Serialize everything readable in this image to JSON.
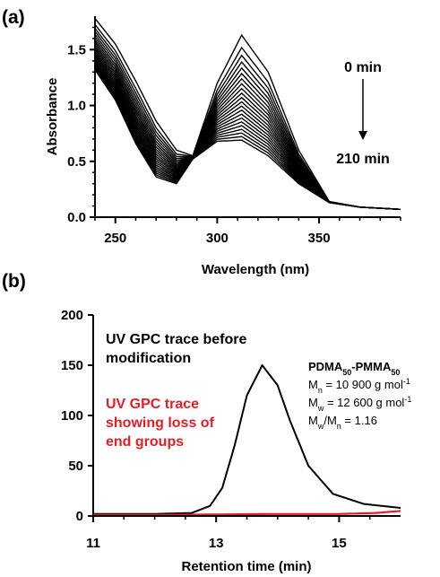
{
  "chart_data": [
    {
      "panel": "(a)",
      "type": "line",
      "xlabel": "Wavelength (nm)",
      "ylabel": "Absorbance",
      "xlim": [
        240,
        390
      ],
      "ylim": [
        0,
        1.8
      ],
      "xticks": [
        250,
        300,
        350
      ],
      "yticks": [
        0.0,
        0.5,
        1.0,
        1.5
      ],
      "ytick_labels": [
        "0.0",
        "0.5",
        "1.0",
        "1.5"
      ],
      "annotations": {
        "start": "0 min",
        "end": "210 min"
      },
      "n_curves": 22,
      "x": [
        240,
        250,
        260,
        270,
        280,
        288,
        300,
        312,
        325,
        340,
        355,
        370,
        390
      ],
      "series_first": [
        1.78,
        1.55,
        1.22,
        0.86,
        0.6,
        0.55,
        1.2,
        1.63,
        1.3,
        0.6,
        0.14,
        0.09,
        0.07
      ],
      "series_last": [
        1.32,
        1.05,
        0.66,
        0.36,
        0.3,
        0.52,
        0.68,
        0.69,
        0.55,
        0.3,
        0.13,
        0.09,
        0.07
      ],
      "color": "#000000"
    },
    {
      "panel": "(b)",
      "type": "line",
      "xlabel": "Retention time (min)",
      "ylabel": "",
      "xlim": [
        11,
        16
      ],
      "ylim": [
        0,
        200
      ],
      "xticks": [
        11,
        13,
        15
      ],
      "yticks": [
        0,
        50,
        100,
        150,
        200
      ],
      "series": [
        {
          "name": "UV GPC trace before modification",
          "color": "#000000",
          "x": [
            11,
            12,
            12.6,
            12.9,
            13.1,
            13.3,
            13.5,
            13.75,
            14.0,
            14.2,
            14.5,
            14.9,
            15.4,
            16
          ],
          "y": [
            2,
            2,
            3,
            10,
            28,
            70,
            120,
            150,
            130,
            95,
            50,
            22,
            12,
            8
          ]
        },
        {
          "name": "UV GPC trace showing loss of end groups",
          "color": "#e31e24",
          "x": [
            11,
            12,
            13,
            14,
            15,
            15.6,
            16
          ],
          "y": [
            1,
            1,
            1.5,
            2,
            2,
            3,
            5
          ]
        }
      ],
      "legend_labels": [
        [
          "UV GPC trace before",
          "modification"
        ],
        [
          "UV GPC trace",
          "showing loss of",
          "end groups"
        ]
      ],
      "info_box": {
        "title": {
          "base": "PDMA",
          "sub1": "50",
          "mid": "-PMMA",
          "sub2": "50"
        },
        "lines": [
          {
            "base": "M",
            "sub": "n",
            "text": " = 10 900 g mol",
            "sup": "-1"
          },
          {
            "base": "M",
            "sub": "w",
            "text": " = 12 600 g mol",
            "sup": "-1"
          },
          {
            "base": "M",
            "sub": "w",
            "mid": "/M",
            "sub2": "n",
            "text": " = 1.16"
          }
        ]
      }
    }
  ]
}
